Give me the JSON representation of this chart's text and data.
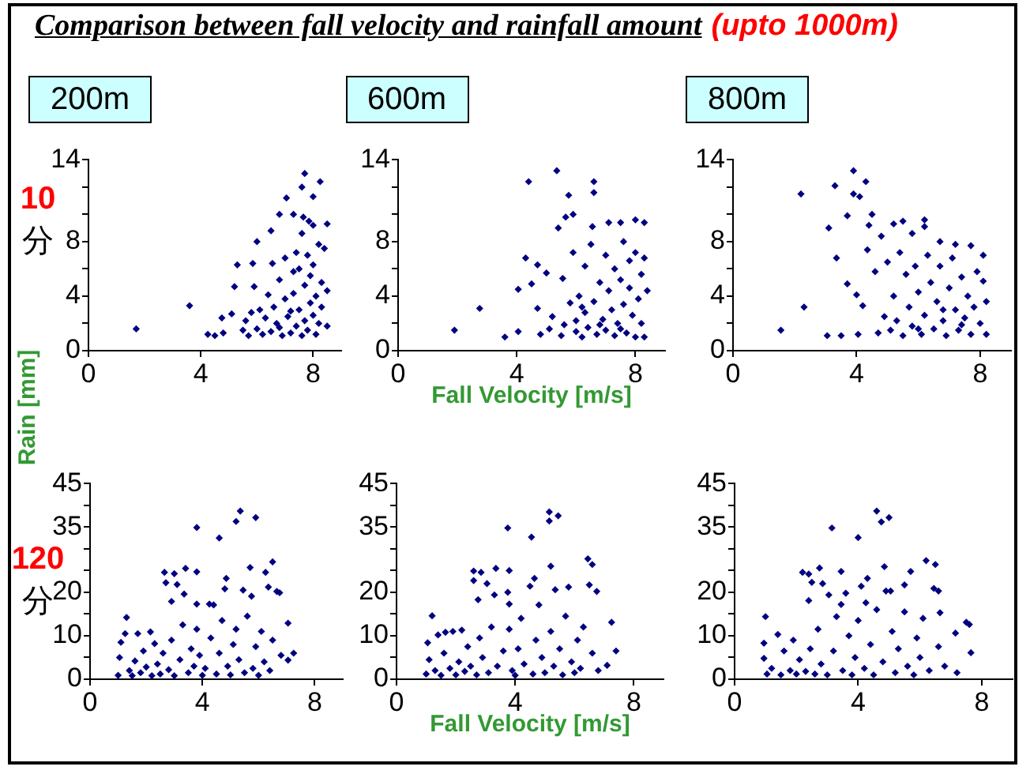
{
  "chart_data": [
    {
      "type": "other",
      "title": "Comparison between fall velocity and rainfall amount",
      "annotations": [
        "(upto 1000m)"
      ]
    },
    {
      "type": "scatter",
      "title": "200m",
      "ylabel": "Rain [mm]",
      "annotations": [
        "10",
        "分"
      ],
      "color": "#000080",
      "marker": "diamond",
      "xlim": [
        0,
        9
      ],
      "xticks": [
        0,
        4,
        8
      ],
      "ylim": [
        0,
        14
      ],
      "yticks": [
        0,
        {
          "value": 2,
          "label": null
        },
        4,
        {
          "value": 6,
          "label": null
        },
        8,
        {
          "value": 10,
          "label": null
        },
        {
          "value": 12,
          "label": null
        },
        14
      ],
      "x": [
        1.7,
        3.6,
        4.25,
        4.5,
        4.8,
        4.75,
        5.1,
        5.2,
        5.3,
        5.5,
        5.6,
        5.7,
        5.85,
        5.9,
        6.0,
        6.0,
        6.1,
        6.2,
        6.3,
        6.4,
        6.5,
        6.55,
        6.5,
        6.6,
        6.7,
        6.8,
        6.8,
        6.9,
        7.0,
        7.05,
        7.0,
        7.1,
        7.2,
        7.3,
        7.3,
        7.3,
        7.4,
        7.4,
        7.5,
        7.5,
        7.6,
        7.65,
        7.6,
        7.6,
        7.7,
        7.7,
        7.7,
        7.8,
        7.8,
        7.85,
        7.9,
        7.9,
        8.0,
        8.0,
        8.0,
        8.0,
        8.1,
        8.1,
        8.2,
        8.25,
        8.2,
        8.3,
        8.4,
        8.5,
        8.5,
        8.5,
        8.3,
        6.8,
        7.2,
        5.8
      ],
      "values": [
        1.6,
        3.3,
        1.2,
        1.1,
        1.3,
        2.4,
        2.7,
        4.7,
        6.3,
        1.5,
        2.2,
        1.1,
        6.4,
        4.7,
        8.0,
        1.6,
        3.0,
        1.2,
        2.4,
        4.1,
        8.8,
        6.4,
        1.4,
        3.2,
        2.0,
        10.0,
        5.2,
        1.1,
        3.8,
        11.2,
        6.8,
        2.5,
        1.3,
        10.0,
        5.8,
        4.2,
        1.8,
        7.2,
        3.0,
        6.0,
        12.0,
        9.8,
        1.1,
        8.6,
        13.0,
        4.8,
        2.2,
        7.0,
        1.5,
        9.5,
        5.5,
        3.5,
        11.3,
        9.2,
        2.6,
        6.3,
        1.2,
        4.0,
        7.8,
        12.4,
        2.0,
        5.0,
        7.5,
        9.3,
        4.4,
        1.8,
        3.2,
        1.7,
        2.9,
        2.8
      ]
    },
    {
      "type": "scatter",
      "title": "600m",
      "xlabel": "Fall Velocity [m/s]",
      "color": "#000080",
      "marker": "diamond",
      "xlim": [
        0,
        9
      ],
      "xticks": [
        0,
        4,
        8
      ],
      "ylim": [
        0,
        14
      ],
      "yticks": [
        0,
        {
          "value": 2,
          "label": null
        },
        4,
        {
          "value": 6,
          "label": null
        },
        8,
        {
          "value": 10,
          "label": null
        },
        {
          "value": 12,
          "label": null
        },
        14
      ],
      "x": [
        1.9,
        2.75,
        3.6,
        4.05,
        4.05,
        4.3,
        4.4,
        4.5,
        4.7,
        4.7,
        4.8,
        5.0,
        5.1,
        5.2,
        5.35,
        5.4,
        5.5,
        5.55,
        5.65,
        5.75,
        5.8,
        5.9,
        5.9,
        6.0,
        6.0,
        6.1,
        6.2,
        6.3,
        6.3,
        6.4,
        6.5,
        6.55,
        6.6,
        6.6,
        6.6,
        6.7,
        6.8,
        6.9,
        7.0,
        7.0,
        7.1,
        7.1,
        7.2,
        7.3,
        7.3,
        7.4,
        7.5,
        7.5,
        7.6,
        7.6,
        7.7,
        7.8,
        7.8,
        7.9,
        8.0,
        8.0,
        8.0,
        8.1,
        8.2,
        8.2,
        8.3,
        8.3,
        8.3,
        8.4,
        6.8,
        7.5,
        5.6,
        6.2
      ],
      "values": [
        1.5,
        3.1,
        1.0,
        1.4,
        4.5,
        6.8,
        12.4,
        4.9,
        6.3,
        3.1,
        1.2,
        5.7,
        1.6,
        2.5,
        13.2,
        9.0,
        1.1,
        5.3,
        9.8,
        11.4,
        3.5,
        10.0,
        7.2,
        1.4,
        2.2,
        4.0,
        1.0,
        6.2,
        2.8,
        1.7,
        7.8,
        9.1,
        12.4,
        11.6,
        3.6,
        1.2,
        5.0,
        2.3,
        7.0,
        1.5,
        9.4,
        4.4,
        3.0,
        1.1,
        6.0,
        2.0,
        9.4,
        5.2,
        8.0,
        3.4,
        1.3,
        4.6,
        6.6,
        2.6,
        9.6,
        1.0,
        7.2,
        3.8,
        5.6,
        2.0,
        9.4,
        1.0,
        6.8,
        4.4,
        1.9,
        1.6,
        1.9,
        3.2
      ]
    },
    {
      "type": "scatter",
      "title": "800m",
      "color": "#000080",
      "marker": "diamond",
      "xlim": [
        0,
        9
      ],
      "xticks": [
        0,
        4,
        8
      ],
      "ylim": [
        0,
        14
      ],
      "yticks": [
        0,
        {
          "value": 2,
          "label": null
        },
        4,
        {
          "value": 6,
          "label": null
        },
        8,
        {
          "value": 10,
          "label": null
        },
        {
          "value": 12,
          "label": null
        },
        14
      ],
      "x": [
        1.55,
        2.2,
        2.3,
        3.05,
        3.1,
        3.3,
        3.35,
        3.5,
        3.7,
        3.7,
        3.9,
        3.9,
        4.0,
        4.05,
        4.1,
        4.2,
        4.3,
        4.35,
        4.4,
        4.5,
        4.6,
        4.7,
        4.8,
        4.9,
        5.0,
        5.1,
        5.2,
        5.2,
        5.3,
        5.4,
        5.5,
        5.5,
        5.6,
        5.7,
        5.8,
        5.8,
        5.9,
        6.0,
        6.1,
        6.2,
        6.2,
        6.2,
        6.3,
        6.4,
        6.5,
        6.6,
        6.7,
        6.7,
        6.8,
        6.9,
        7.0,
        7.1,
        7.2,
        7.2,
        7.3,
        7.4,
        7.5,
        7.6,
        7.7,
        7.7,
        7.8,
        7.9,
        8.0,
        8.1,
        8.1,
        8.2,
        8.2,
        6.0,
        6.8,
        7.4
      ],
      "values": [
        1.5,
        11.5,
        3.2,
        1.1,
        9.0,
        12.1,
        6.8,
        1.1,
        4.9,
        9.9,
        11.5,
        13.2,
        4.1,
        1.2,
        11.3,
        3.3,
        12.4,
        7.4,
        9.2,
        10.0,
        5.8,
        1.3,
        8.4,
        2.5,
        6.5,
        1.5,
        9.3,
        4.0,
        2.2,
        7.2,
        9.5,
        1.1,
        5.6,
        3.2,
        8.6,
        1.8,
        6.2,
        4.3,
        1.2,
        9.6,
        9.1,
        2.6,
        7.0,
        5.0,
        1.6,
        3.6,
        8.0,
        6.2,
        2.2,
        1.1,
        4.6,
        6.8,
        7.8,
        3.0,
        1.5,
        5.4,
        2.4,
        4.0,
        7.7,
        1.2,
        3.2,
        5.8,
        2.0,
        7.0,
        5.1,
        1.2,
        3.6,
        1.6,
        3.0,
        1.9
      ]
    },
    {
      "type": "scatter",
      "annotations": [
        "120",
        "分"
      ],
      "color": "#000080",
      "marker": "diamond",
      "xlim": [
        0,
        9
      ],
      "xticks": [
        0,
        4,
        8
      ],
      "ylim": [
        0,
        45
      ],
      "yticks": [
        0,
        {
          "value": 5,
          "label": null
        },
        10,
        {
          "value": 15,
          "label": null
        },
        20,
        {
          "value": 25,
          "label": null
        },
        {
          "value": 30,
          "label": null
        },
        35,
        {
          "value": 40,
          "label": null
        },
        45
      ],
      "x": [
        1.0,
        1.05,
        1.1,
        1.25,
        1.3,
        1.4,
        1.5,
        1.6,
        1.7,
        1.8,
        1.9,
        2.0,
        2.15,
        2.2,
        2.3,
        2.4,
        2.5,
        2.6,
        2.65,
        2.7,
        2.8,
        2.9,
        2.9,
        3.0,
        3.0,
        3.1,
        3.2,
        3.3,
        3.35,
        3.4,
        3.5,
        3.6,
        3.7,
        3.8,
        3.8,
        3.8,
        3.8,
        3.9,
        4.0,
        4.1,
        4.25,
        4.3,
        4.4,
        4.5,
        4.6,
        4.6,
        4.7,
        4.8,
        4.85,
        4.9,
        5.0,
        5.1,
        5.2,
        5.2,
        5.3,
        5.35,
        5.45,
        5.5,
        5.6,
        5.7,
        5.75,
        5.8,
        5.9,
        5.9,
        6.0,
        6.1,
        6.2,
        6.25,
        6.35,
        6.4,
        6.5,
        6.5,
        6.65,
        6.75,
        6.8,
        7.05,
        7.05,
        7.25
      ],
      "values": [
        0.9,
        5.0,
        8.5,
        10.5,
        14.2,
        2.0,
        0.8,
        4.2,
        10.5,
        1.5,
        6.5,
        2.8,
        10.9,
        0.8,
        8.2,
        3.5,
        1.2,
        6.0,
        24.6,
        22.2,
        2.2,
        17.9,
        9.0,
        24.3,
        0.8,
        21.8,
        4.5,
        12.5,
        19.6,
        25.5,
        1.5,
        7.0,
        3.0,
        34.9,
        24.7,
        17.3,
        11.5,
        5.5,
        0.9,
        2.5,
        17.3,
        9.5,
        17.1,
        1.2,
        32.5,
        6.0,
        13.5,
        20.8,
        23.2,
        3.0,
        1.0,
        8.0,
        36.3,
        11.5,
        4.5,
        38.7,
        20.5,
        1.5,
        14.5,
        25.7,
        19.1,
        2.5,
        37.2,
        7.5,
        0.9,
        11.0,
        4.0,
        24.6,
        21.2,
        2.0,
        27.0,
        9.0,
        20.2,
        19.9,
        5.5,
        12.9,
        4.4,
        6.0
      ]
    },
    {
      "type": "scatter",
      "xlabel": "Fall Velocity [m/s]",
      "color": "#000080",
      "marker": "diamond",
      "xlim": [
        0,
        9
      ],
      "xticks": [
        0,
        4,
        8
      ],
      "ylim": [
        0,
        45
      ],
      "yticks": [
        0,
        {
          "value": 5,
          "label": null
        },
        10,
        {
          "value": 15,
          "label": null
        },
        20,
        {
          "value": 25,
          "label": null
        },
        {
          "value": 30,
          "label": null
        },
        35,
        {
          "value": 40,
          "label": null
        },
        45
      ],
      "x": [
        1.0,
        1.05,
        1.1,
        1.2,
        1.3,
        1.4,
        1.5,
        1.6,
        1.65,
        1.8,
        1.9,
        2.0,
        2.1,
        2.2,
        2.3,
        2.4,
        2.5,
        2.6,
        2.6,
        2.7,
        2.75,
        2.8,
        2.85,
        2.9,
        3.05,
        3.1,
        3.2,
        3.3,
        3.35,
        3.4,
        3.6,
        3.75,
        3.75,
        3.8,
        3.8,
        3.8,
        3.9,
        4.0,
        4.1,
        4.2,
        4.3,
        4.5,
        4.55,
        4.6,
        4.65,
        4.7,
        4.8,
        4.9,
        5.0,
        5.15,
        5.15,
        5.2,
        5.2,
        5.3,
        5.35,
        5.45,
        5.5,
        5.6,
        5.7,
        5.8,
        5.9,
        6.0,
        6.1,
        6.2,
        6.3,
        6.45,
        6.5,
        6.6,
        6.6,
        6.75,
        6.8,
        7.1,
        7.25,
        7.4
      ],
      "values": [
        1.2,
        8.4,
        4.5,
        14.6,
        2.0,
        10.2,
        0.9,
        6.0,
        10.8,
        2.5,
        11.0,
        1.0,
        4.0,
        11.3,
        1.8,
        7.5,
        3.0,
        24.9,
        22.7,
        1.0,
        18.3,
        9.5,
        24.6,
        5.0,
        22.0,
        1.5,
        12.0,
        19.4,
        25.5,
        3.0,
        6.5,
        34.8,
        20.0,
        25.0,
        17.3,
        11.5,
        2.0,
        0.9,
        7.0,
        14.0,
        3.5,
        21.4,
        32.7,
        1.2,
        23.2,
        9.0,
        17.1,
        5.0,
        1.5,
        38.5,
        36.4,
        26.0,
        11.0,
        3.0,
        20.6,
        37.6,
        7.0,
        1.0,
        14.5,
        21.2,
        4.0,
        1.5,
        9.0,
        2.5,
        12.0,
        27.7,
        21.7,
        26.4,
        6.0,
        20.2,
        2.0,
        3.2,
        13.1,
        6.5
      ]
    },
    {
      "type": "scatter",
      "color": "#000080",
      "marker": "diamond",
      "xlim": [
        0,
        9
      ],
      "xticks": [
        0,
        4,
        8
      ],
      "ylim": [
        0,
        45
      ],
      "yticks": [
        0,
        {
          "value": 5,
          "label": null
        },
        10,
        {
          "value": 15,
          "label": null
        },
        20,
        {
          "value": 25,
          "label": null
        },
        {
          "value": 30,
          "label": null
        },
        35,
        {
          "value": 40,
          "label": null
        },
        45
      ],
      "x": [
        0.95,
        0.95,
        1.0,
        1.05,
        1.2,
        1.4,
        1.5,
        1.6,
        1.8,
        1.9,
        2.0,
        2.1,
        2.2,
        2.3,
        2.4,
        2.4,
        2.45,
        2.5,
        2.6,
        2.7,
        2.75,
        2.8,
        2.85,
        3.0,
        3.05,
        3.15,
        3.2,
        3.3,
        3.45,
        3.45,
        3.5,
        3.6,
        3.7,
        3.8,
        3.9,
        4.0,
        4.0,
        4.1,
        4.2,
        4.25,
        4.3,
        4.4,
        4.5,
        4.6,
        4.6,
        4.75,
        4.8,
        4.85,
        4.9,
        5.0,
        5.05,
        5.1,
        5.2,
        5.3,
        5.5,
        5.5,
        5.6,
        5.7,
        5.8,
        5.9,
        6.0,
        6.1,
        6.2,
        6.3,
        6.45,
        6.5,
        6.6,
        6.6,
        6.65,
        6.8,
        7.15,
        7.5,
        7.6,
        7.65,
        7.2
      ],
      "values": [
        4.8,
        8.3,
        14.4,
        1.2,
        2.5,
        10.3,
        1.0,
        6.5,
        2.0,
        9.0,
        1.2,
        4.5,
        24.6,
        1.8,
        24.2,
        18.1,
        7.0,
        22.3,
        1.2,
        11.5,
        25.6,
        3.5,
        22.0,
        1.0,
        19.4,
        34.8,
        6.5,
        14.4,
        24.8,
        17.2,
        2.0,
        19.8,
        10.0,
        1.0,
        5.0,
        32.6,
        13.5,
        21.4,
        2.5,
        17.6,
        23.2,
        8.0,
        1.0,
        38.7,
        16.0,
        36.2,
        4.0,
        25.9,
        20.3,
        37.2,
        20.3,
        11.0,
        1.5,
        7.0,
        21.7,
        15.5,
        3.0,
        24.8,
        1.0,
        9.5,
        5.0,
        14.0,
        27.3,
        2.0,
        20.9,
        26.4,
        20.3,
        7.5,
        15.3,
        3.0,
        10.6,
        13.1,
        12.6,
        6.1,
        1.5
      ]
    }
  ]
}
